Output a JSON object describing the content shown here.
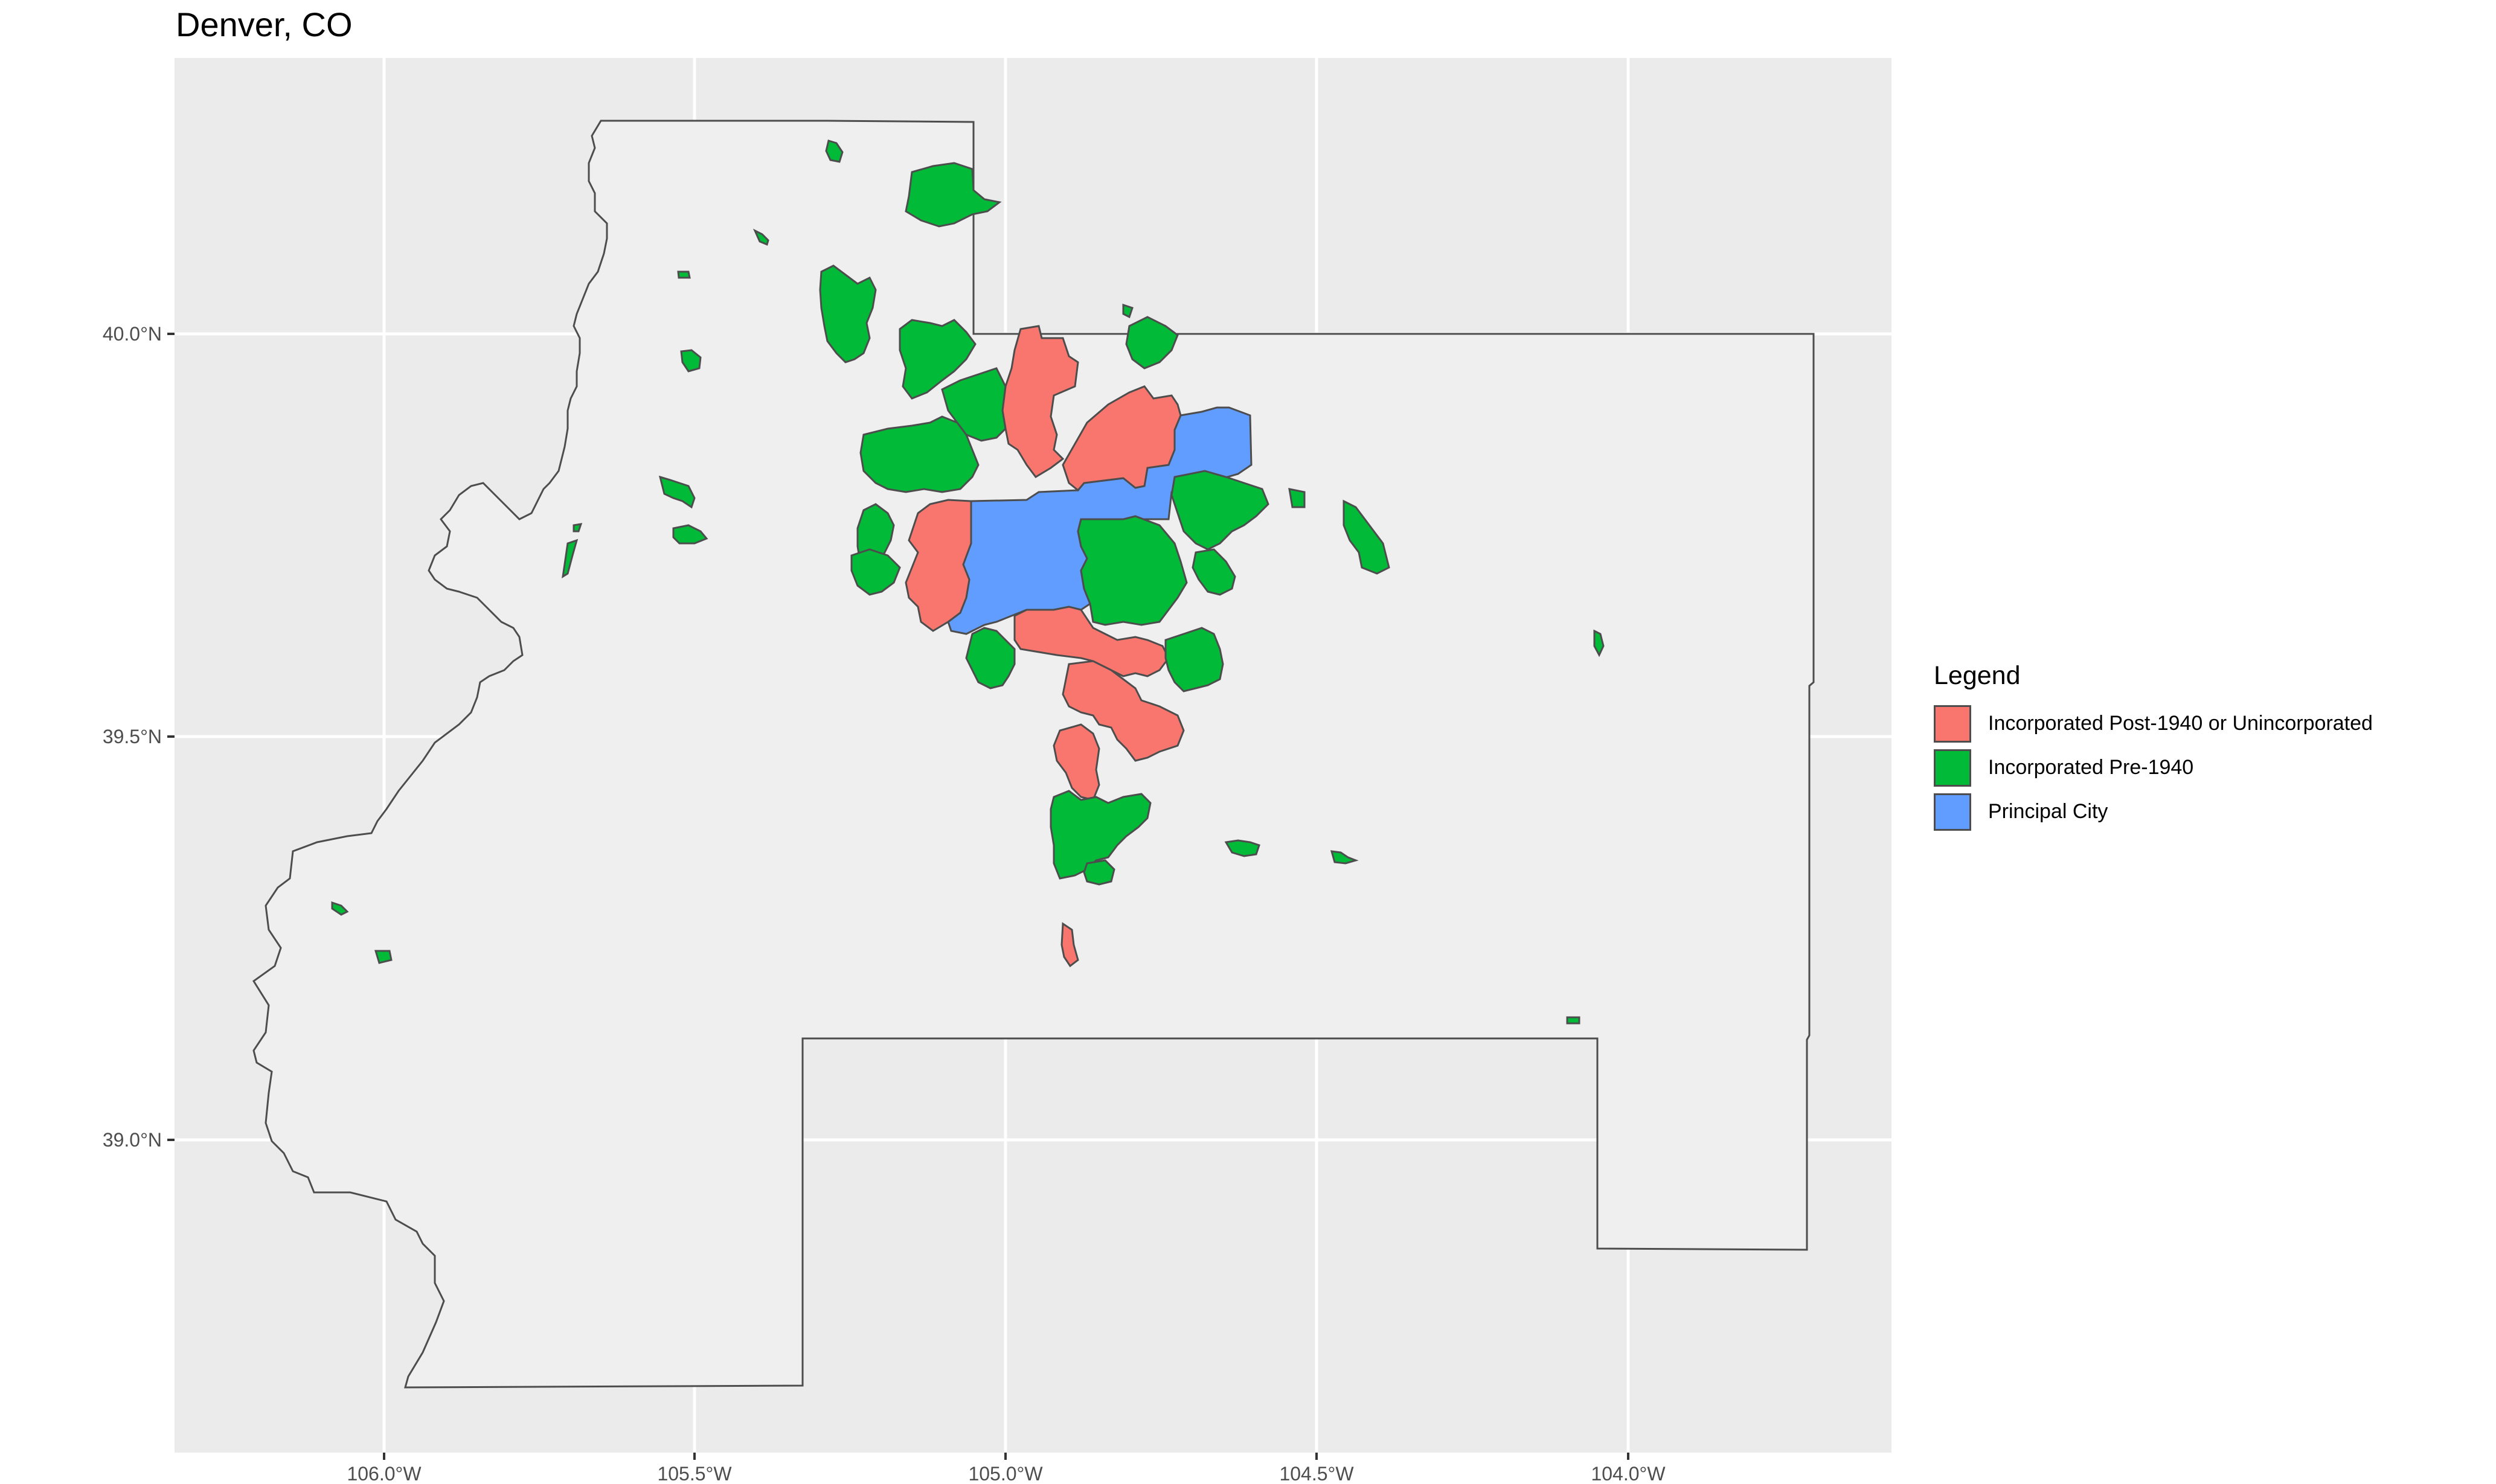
{
  "title": "Denver, CO",
  "axes": {
    "x_ticks": [
      "106.0°W",
      "105.5°W",
      "105.0°W",
      "104.5°W",
      "104.0°W"
    ],
    "y_ticks": [
      "40.0°N",
      "39.5°N",
      "39.0°N"
    ]
  },
  "legend": {
    "title": "Legend",
    "items": [
      {
        "label": "Incorporated Post-1940 or Unincorporated",
        "color": "#f8766d"
      },
      {
        "label": "Incorporated Pre-1940",
        "color": "#00ba38"
      },
      {
        "label": "Principal City",
        "color": "#619cff"
      }
    ]
  },
  "colors": {
    "panel": "#ebebeb",
    "grid": "#ffffff",
    "region_fill": "#efefef",
    "outline": "#4d4d4d"
  }
}
